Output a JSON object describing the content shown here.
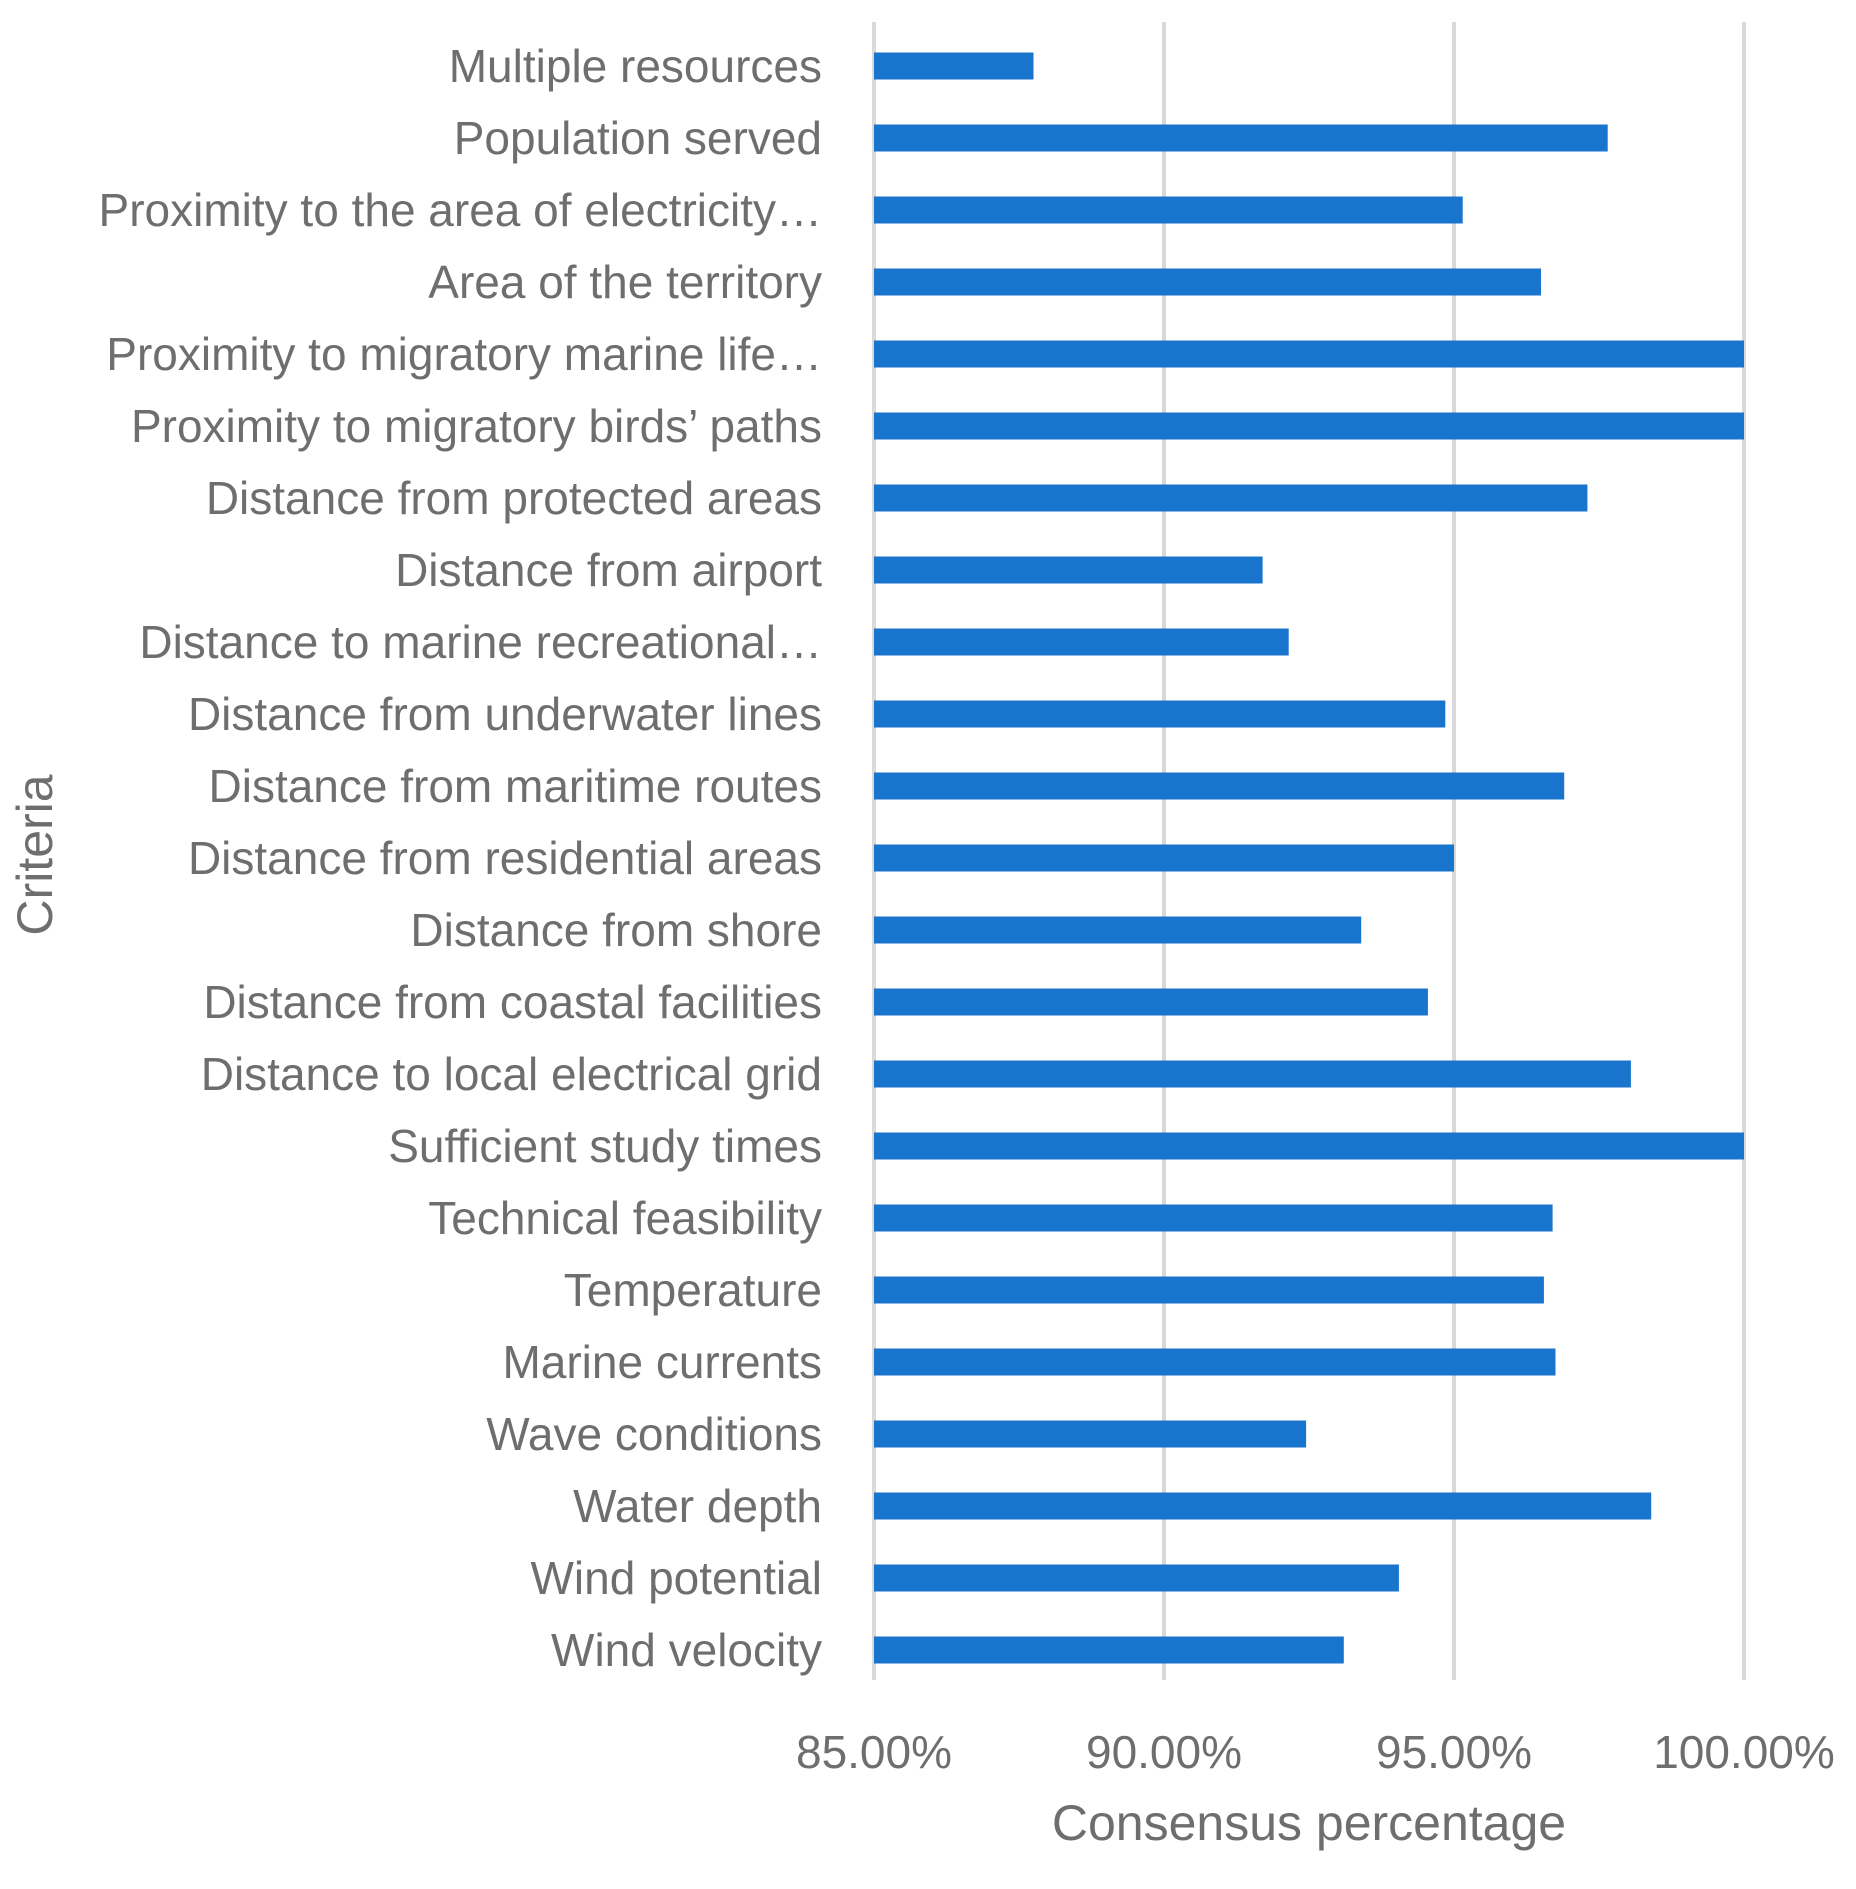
{
  "chart_data": {
    "type": "bar",
    "orientation": "horizontal",
    "title": "",
    "xlabel": "Consensus percentage",
    "ylabel": "Criteria",
    "xlim": [
      0.85,
      1.0
    ],
    "grid": true,
    "legend": "none",
    "bar_color": "#1874CD",
    "grid_color": "#d9d9d9",
    "text_color": "#6e6e6e",
    "x_ticks": [
      {
        "value": 0.85,
        "label": "85.00%"
      },
      {
        "value": 0.9,
        "label": "90.00%"
      },
      {
        "value": 0.95,
        "label": "95.00%"
      },
      {
        "value": 1.0,
        "label": "100.00%"
      }
    ],
    "categories": [
      "Multiple resources",
      "Population served",
      "Proximity to the area of electricity…",
      "Area of the territory",
      "Proximity to migratory marine life…",
      "Proximity to migratory birds’ paths",
      "Distance from protected areas",
      "Distance from airport",
      "Distance to marine recreational…",
      "Distance from underwater lines",
      "Distance from maritime routes",
      "Distance from residential areas",
      "Distance from shore",
      "Distance from coastal facilities",
      "Distance to local electrical grid",
      "Sufficient study times",
      "Technical feasibility",
      "Temperature",
      "Marine currents",
      "Wave conditions",
      "Water depth",
      "Wind potential",
      "Wind velocity"
    ],
    "values": [
      0.8775,
      0.9765,
      0.9515,
      0.965,
      1.0,
      1.0,
      0.973,
      0.917,
      0.9215,
      0.9485,
      0.969,
      0.95,
      0.934,
      0.9455,
      0.9805,
      1.0,
      0.967,
      0.9655,
      0.9675,
      0.9245,
      0.984,
      0.9405,
      0.931
    ]
  }
}
